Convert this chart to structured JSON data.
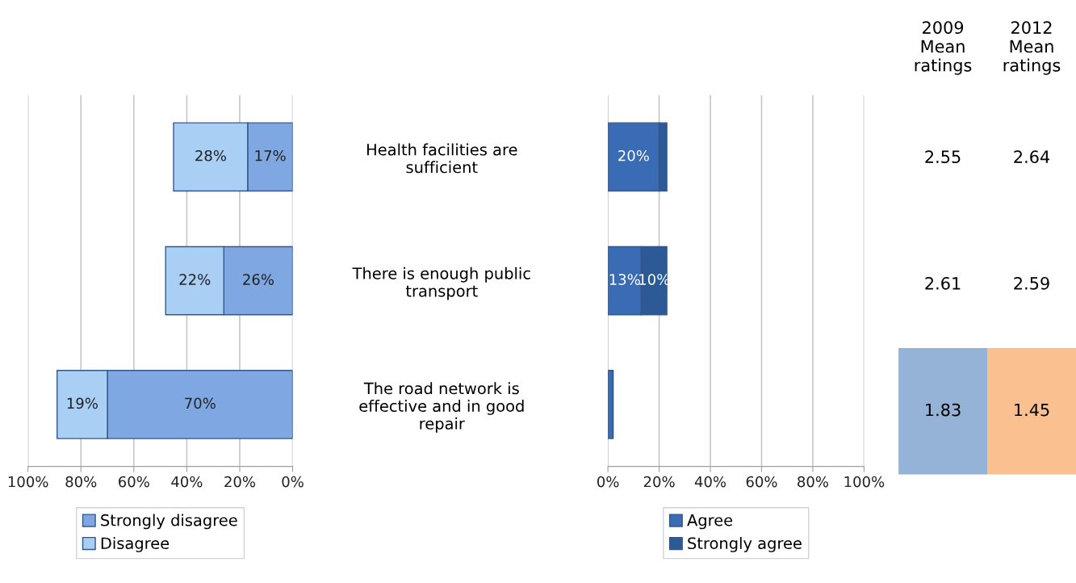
{
  "chart_data": [
    {
      "type": "bar",
      "orientation": "horizontal",
      "stacked": true,
      "categories": [
        "Health facilities are\nsufficient",
        "There is enough public\ntransport",
        "The road network is\neffective and in good\nrepair"
      ],
      "series": [
        {
          "name": "Strongly disagree",
          "color": "#7fa8e2",
          "values": [
            17,
            26,
            70
          ],
          "value_labels": [
            "17%",
            "26%",
            "70%"
          ]
        },
        {
          "name": "Disagree",
          "color": "#a9cff5",
          "values": [
            28,
            22,
            19
          ],
          "value_labels": [
            "28%",
            "22%",
            "19%"
          ]
        }
      ],
      "xlim": [
        100,
        0
      ],
      "xticks": [
        {
          "value": 100,
          "label": "100%"
        },
        {
          "value": 80,
          "label": "80%"
        },
        {
          "value": 60,
          "label": "60%"
        },
        {
          "value": 40,
          "label": "40%"
        },
        {
          "value": 20,
          "label": "20%"
        },
        {
          "value": 0,
          "label": "0%"
        }
      ],
      "grid": "x",
      "legend": "bottom"
    },
    {
      "type": "bar",
      "orientation": "horizontal",
      "stacked": true,
      "categories": [
        null,
        null,
        null
      ],
      "series": [
        {
          "name": "Agree",
          "color": "#3a6cb5",
          "values": [
            20,
            13,
            2
          ],
          "value_labels": [
            "20%",
            "13%",
            null
          ]
        },
        {
          "name": "Strongly agree",
          "color": "#2b5a97",
          "values": [
            3,
            10,
            0
          ],
          "value_labels": [
            null,
            "10%",
            null
          ]
        }
      ],
      "xlim": [
        0,
        100
      ],
      "xticks": [
        {
          "value": 0,
          "label": "0%"
        },
        {
          "value": 20,
          "label": "20%"
        },
        {
          "value": 40,
          "label": "40%"
        },
        {
          "value": 60,
          "label": "60%"
        },
        {
          "value": 80,
          "label": "80%"
        },
        {
          "value": 100,
          "label": "100%"
        }
      ],
      "grid": "x",
      "legend": "bottom"
    },
    {
      "type": "heatmap",
      "categories": [
        "2009\nMean\nratings",
        "2012\nMean\nratings"
      ],
      "y_categories": [
        null,
        null,
        null
      ],
      "cells": [
        [
          2.55,
          2.64
        ],
        [
          2.61,
          2.59
        ],
        [
          1.83,
          1.45
        ]
      ],
      "colors": [
        [
          null,
          null
        ],
        [
          null,
          null
        ],
        [
          "#95b3d7",
          "#fac08f"
        ]
      ],
      "data_labels": true
    }
  ]
}
